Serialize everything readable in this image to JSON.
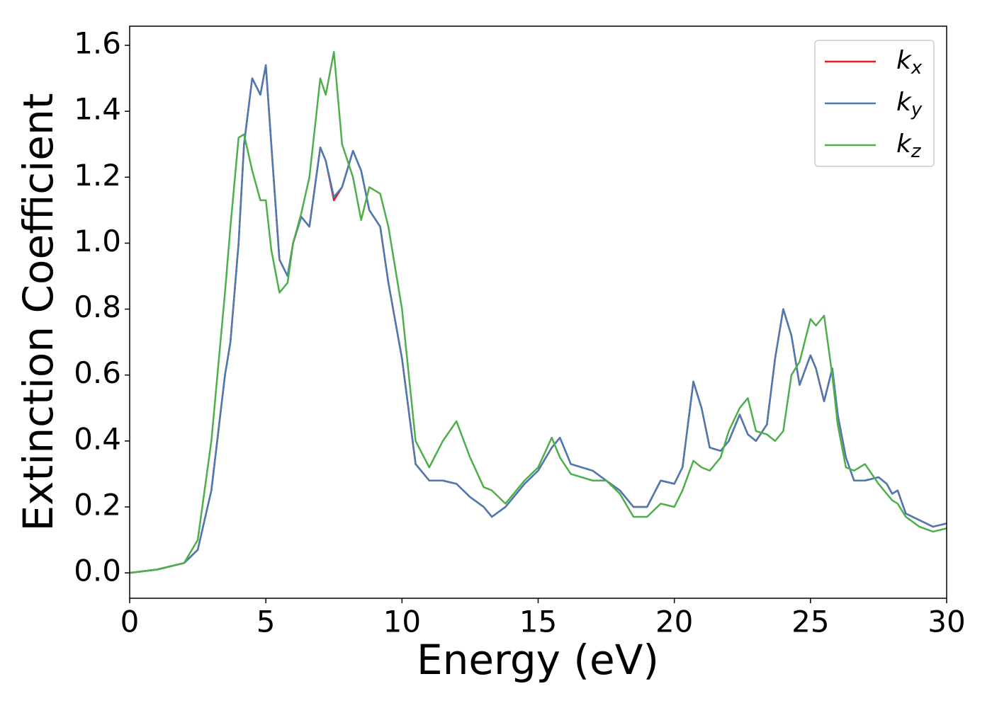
{
  "chart_data": {
    "type": "line",
    "xlabel": "Energy (eV)",
    "ylabel": "Extinction Coefficient",
    "x": [
      0,
      1,
      2,
      2.5,
      3,
      3.5,
      3.7,
      4,
      4.2,
      4.5,
      4.8,
      5,
      5.2,
      5.5,
      5.8,
      6,
      6.3,
      6.6,
      7,
      7.2,
      7.5,
      7.8,
      8.2,
      8.5,
      8.8,
      9.2,
      9.5,
      10,
      10.5,
      11,
      11.5,
      12,
      12.5,
      13,
      13.3,
      13.8,
      14.5,
      15,
      15.5,
      15.8,
      16.2,
      17,
      17.5,
      18,
      18.5,
      19,
      19.5,
      20,
      20.3,
      20.7,
      21,
      21.3,
      21.7,
      22,
      22.4,
      22.7,
      23,
      23.4,
      23.7,
      24,
      24.3,
      24.6,
      25,
      25.2,
      25.5,
      25.8,
      26,
      26.3,
      26.6,
      27,
      27.5,
      27.8,
      28,
      28.2,
      28.5,
      29,
      29.5,
      30
    ],
    "series": [
      {
        "name": "kx",
        "color": "#e41a1c",
        "values": [
          0,
          0.01,
          0.03,
          0.07,
          0.25,
          0.6,
          0.7,
          1.0,
          1.3,
          1.5,
          1.45,
          1.54,
          1.3,
          0.95,
          0.9,
          1.0,
          1.08,
          1.05,
          1.29,
          1.25,
          1.13,
          1.17,
          1.28,
          1.22,
          1.1,
          1.05,
          0.88,
          0.65,
          0.33,
          0.28,
          0.28,
          0.27,
          0.23,
          0.2,
          0.17,
          0.2,
          0.27,
          0.31,
          0.38,
          0.41,
          0.33,
          0.31,
          0.28,
          0.25,
          0.2,
          0.2,
          0.28,
          0.27,
          0.32,
          0.58,
          0.5,
          0.38,
          0.37,
          0.4,
          0.48,
          0.42,
          0.4,
          0.45,
          0.65,
          0.8,
          0.72,
          0.57,
          0.66,
          0.62,
          0.52,
          0.62,
          0.48,
          0.35,
          0.28,
          0.28,
          0.29,
          0.27,
          0.24,
          0.25,
          0.18,
          0.16,
          0.14,
          0.15
        ]
      },
      {
        "name": "ky",
        "color": "#4a7bb5",
        "values": [
          0,
          0.01,
          0.03,
          0.07,
          0.25,
          0.6,
          0.7,
          1.0,
          1.3,
          1.5,
          1.45,
          1.54,
          1.3,
          0.95,
          0.9,
          1.0,
          1.08,
          1.05,
          1.29,
          1.25,
          1.14,
          1.17,
          1.28,
          1.22,
          1.1,
          1.05,
          0.88,
          0.65,
          0.33,
          0.28,
          0.28,
          0.27,
          0.23,
          0.2,
          0.17,
          0.2,
          0.27,
          0.31,
          0.38,
          0.41,
          0.33,
          0.31,
          0.28,
          0.25,
          0.2,
          0.2,
          0.28,
          0.27,
          0.32,
          0.58,
          0.5,
          0.38,
          0.37,
          0.4,
          0.48,
          0.42,
          0.4,
          0.45,
          0.65,
          0.8,
          0.72,
          0.57,
          0.66,
          0.62,
          0.52,
          0.62,
          0.48,
          0.35,
          0.28,
          0.28,
          0.29,
          0.27,
          0.24,
          0.25,
          0.18,
          0.16,
          0.14,
          0.15
        ]
      },
      {
        "name": "kz",
        "color": "#4daf4a",
        "values": [
          0,
          0.01,
          0.03,
          0.1,
          0.4,
          0.85,
          1.05,
          1.32,
          1.33,
          1.22,
          1.13,
          1.13,
          0.98,
          0.85,
          0.88,
          1.0,
          1.09,
          1.2,
          1.5,
          1.45,
          1.58,
          1.3,
          1.2,
          1.07,
          1.17,
          1.15,
          1.05,
          0.8,
          0.4,
          0.32,
          0.4,
          0.46,
          0.35,
          0.26,
          0.25,
          0.21,
          0.28,
          0.32,
          0.41,
          0.35,
          0.3,
          0.28,
          0.28,
          0.24,
          0.17,
          0.17,
          0.21,
          0.2,
          0.25,
          0.34,
          0.32,
          0.31,
          0.35,
          0.43,
          0.5,
          0.53,
          0.43,
          0.42,
          0.4,
          0.43,
          0.6,
          0.64,
          0.77,
          0.75,
          0.78,
          0.6,
          0.45,
          0.32,
          0.31,
          0.33,
          0.27,
          0.24,
          0.22,
          0.21,
          0.17,
          0.14,
          0.125,
          0.135
        ]
      }
    ],
    "xlim": [
      0,
      30
    ],
    "xticks": [
      0,
      5,
      10,
      15,
      20,
      25,
      30
    ],
    "ylim": [
      -0.077,
      1.658
    ],
    "yticks": [
      {
        "value": 0,
        "label": "0.0"
      },
      0.2,
      0.4,
      0.6,
      0.8,
      {
        "value": 1,
        "label": "1.0"
      },
      1.2,
      1.4,
      1.6
    ],
    "legend": "upper right"
  }
}
